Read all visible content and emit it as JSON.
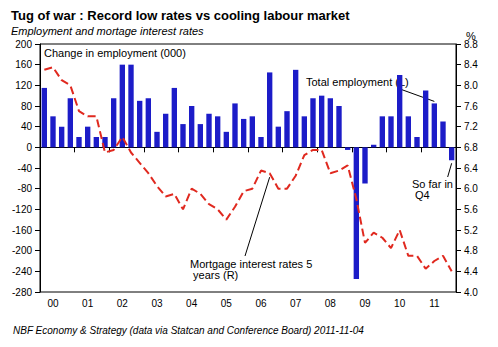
{
  "chart_data": {
    "type": "bar",
    "title": "Tug of war : Record low rates vs cooling labour market",
    "subtitle": "Employment and mortage interest rates",
    "source": "NBF Economy & Strategy (data via Statcan and Conference Board) 2011-11-04",
    "y_label": "Change in employment (000)",
    "y2_label": "%",
    "annotations": [
      "So far in Q4"
    ],
    "categories": [
      null,
      "00",
      null,
      null,
      null,
      "01",
      null,
      null,
      null,
      "02",
      null,
      null,
      null,
      "03",
      null,
      null,
      null,
      "04",
      null,
      null,
      null,
      "05",
      null,
      null,
      null,
      "06",
      null,
      null,
      null,
      "07",
      null,
      null,
      null,
      "08",
      null,
      null,
      null,
      "09",
      null,
      null,
      null,
      "10",
      null,
      null,
      null,
      "11",
      null,
      null
    ],
    "series": [
      {
        "name": "Total employment (L)",
        "type": "bar",
        "color": "#1c1cc8",
        "values": [
          115,
          60,
          40,
          95,
          20,
          40,
          20,
          20,
          95,
          160,
          160,
          90,
          95,
          30,
          65,
          115,
          45,
          80,
          45,
          65,
          60,
          30,
          85,
          55,
          60,
          20,
          145,
          40,
          70,
          150,
          60,
          95,
          100,
          95,
          80,
          -5,
          -255,
          -70,
          5,
          60,
          60,
          140,
          60,
          20,
          110,
          85,
          50,
          -25
        ]
      },
      {
        "name": "Mortgage interest rates 5 years (R)",
        "type": "line",
        "axis": "y2",
        "color": "#e0291f",
        "line_style": "dashed",
        "marker": "none",
        "values": [
          8.3,
          8.35,
          8.1,
          8.0,
          7.5,
          7.4,
          7.4,
          6.7,
          6.75,
          7.0,
          6.7,
          6.5,
          6.3,
          6.05,
          5.85,
          5.9,
          5.6,
          6.0,
          5.9,
          5.7,
          5.6,
          5.4,
          5.65,
          5.95,
          6.0,
          6.35,
          6.3,
          6.0,
          6.0,
          6.25,
          6.65,
          6.75,
          6.75,
          6.3,
          6.35,
          6.45,
          5.8,
          4.95,
          5.15,
          5.05,
          4.85,
          5.2,
          4.7,
          4.7,
          4.45,
          4.6,
          4.7,
          4.4
        ]
      }
    ],
    "ylim": [
      -280,
      200
    ],
    "yticks": [
      -280,
      -240,
      -200,
      -160,
      -120,
      -80,
      -40,
      0,
      40,
      80,
      120,
      160,
      200
    ],
    "y2lim": [
      4.0,
      8.8
    ],
    "y2ticks": [
      {
        "value": 4.0,
        "label": "4.0"
      },
      {
        "value": 4.4,
        "label": "4.4"
      },
      {
        "value": 4.8,
        "label": "4.8"
      },
      {
        "value": 5.2,
        "label": "5.2"
      },
      {
        "value": 5.6,
        "label": "5.6"
      },
      {
        "value": 6.0,
        "label": "6.0"
      },
      {
        "value": 6.4,
        "label": "6.4"
      },
      {
        "value": 6.8,
        "label": "6.8"
      },
      {
        "value": 7.2,
        "label": "7.2"
      },
      {
        "value": 7.6,
        "label": "7.6"
      },
      {
        "value": 8.0,
        "label": "8.0"
      },
      {
        "value": 8.4,
        "label": "8.4"
      },
      {
        "value": 8.8,
        "label": "8.8"
      }
    ],
    "grid": false
  }
}
